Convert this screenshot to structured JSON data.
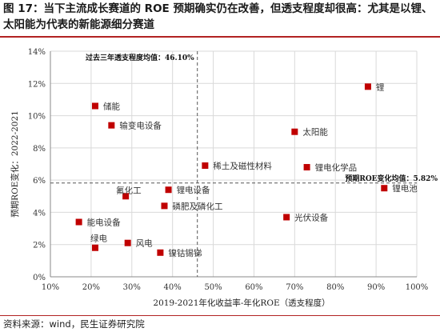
{
  "figure": {
    "title": "图 17：当下主流成长赛道的 ROE 预期确实仍在改善，但透支程度却很高：尤其是以锂、太阳能为代表的新能源细分赛道",
    "source": "资料来源：wind，民生证券研究院"
  },
  "chart_data": {
    "type": "scatter",
    "xlabel": "2019-2021年化收益率-年化ROE（透支程度）",
    "ylabel": "预期ROE变化：2022-2021",
    "xlim": [
      0.1,
      1.0
    ],
    "ylim": [
      0,
      0.14
    ],
    "x_ticks": [
      0.1,
      0.2,
      0.3,
      0.4,
      0.5,
      0.6,
      0.7,
      0.8,
      0.9,
      1.0
    ],
    "x_tick_labels": [
      "10%",
      "20%",
      "30%",
      "40%",
      "50%",
      "60%",
      "70%",
      "80%",
      "90%",
      "100%"
    ],
    "y_ticks": [
      0,
      0.02,
      0.04,
      0.06,
      0.08,
      0.1,
      0.12,
      0.14
    ],
    "y_tick_labels": [
      "0%",
      "2%",
      "4%",
      "6%",
      "8%",
      "10%",
      "12%",
      "14%"
    ],
    "grid": true,
    "marker_color": "#c00000",
    "points": [
      {
        "label": "锂",
        "x": 0.88,
        "y": 0.118
      },
      {
        "label": "储能",
        "x": 0.21,
        "y": 0.106
      },
      {
        "label": "输变电设备",
        "x": 0.25,
        "y": 0.094
      },
      {
        "label": "太阳能",
        "x": 0.7,
        "y": 0.09
      },
      {
        "label": "稀土及磁性材料",
        "x": 0.48,
        "y": 0.069
      },
      {
        "label": "锂电化学品",
        "x": 0.73,
        "y": 0.068
      },
      {
        "label": "锂电池",
        "x": 0.92,
        "y": 0.055
      },
      {
        "label": "氟化工",
        "x": 0.285,
        "y": 0.05
      },
      {
        "label": "锂电设备",
        "x": 0.39,
        "y": 0.054
      },
      {
        "label": "磷肥及磷化工",
        "x": 0.38,
        "y": 0.044
      },
      {
        "label": "光伏设备",
        "x": 0.68,
        "y": 0.037
      },
      {
        "label": "能电设备",
        "x": 0.17,
        "y": 0.034
      },
      {
        "label": "风电",
        "x": 0.29,
        "y": 0.021
      },
      {
        "label": "绿电",
        "x": 0.21,
        "y": 0.018
      },
      {
        "label": "镍钴锡锑",
        "x": 0.37,
        "y": 0.015
      }
    ],
    "reference_lines": [
      {
        "axis": "x",
        "value": 0.461,
        "label": "过去三年透支程度均值：46.10%"
      },
      {
        "axis": "y",
        "value": 0.0582,
        "label": "预期ROE变化均值：5.82%"
      }
    ]
  }
}
